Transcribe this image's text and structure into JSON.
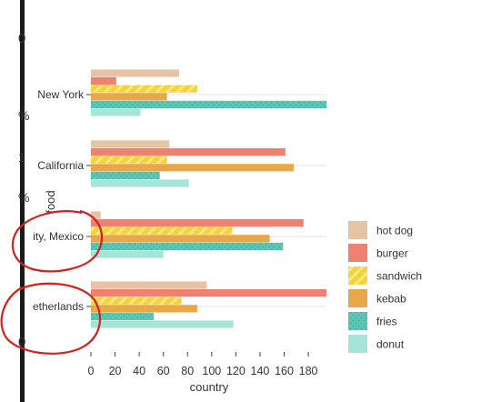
{
  "window_fragments": {
    "left_margin_glyphs": [
      "0",
      "%",
      "1",
      "%",
      "0"
    ]
  },
  "chart_data": {
    "type": "bar",
    "orientation": "horizontal",
    "xlabel": "country",
    "ylabel": "food",
    "xlim": [
      0,
      195
    ],
    "x_ticks": [
      "0",
      "20",
      "40",
      "60",
      "80",
      "100",
      "120",
      "140",
      "160",
      "180"
    ],
    "grid": "horizontal lines at categories",
    "legend_placement": "right",
    "categories": [
      "New York",
      "California",
      "ity, Mexico",
      "etherlands"
    ],
    "series": [
      {
        "name": "hot dog",
        "color": "#e8c3a3",
        "pattern": "solid",
        "values": [
          73,
          65,
          8,
          96
        ]
      },
      {
        "name": "burger",
        "color": "#f08070",
        "pattern": "solid",
        "values": [
          21,
          161,
          176,
          195
        ]
      },
      {
        "name": "sandwich",
        "color": "#f3d23a",
        "pattern": "diagonal-stripes",
        "values": [
          88,
          63,
          117,
          75
        ]
      },
      {
        "name": "kebab",
        "color": "#e8a84a",
        "pattern": "solid",
        "values": [
          63,
          168,
          148,
          88
        ]
      },
      {
        "name": "fries",
        "color": "#5cc7b5",
        "pattern": "dots",
        "values": [
          195,
          57,
          159,
          52
        ]
      },
      {
        "name": "donut",
        "color": "#a5e4d8",
        "pattern": "solid",
        "values": [
          41,
          81,
          60,
          118
        ]
      }
    ]
  },
  "annotations": {
    "color": "#d42020",
    "circles": [
      {
        "label": "ity, Mexico"
      },
      {
        "label": "etherlands"
      }
    ]
  }
}
